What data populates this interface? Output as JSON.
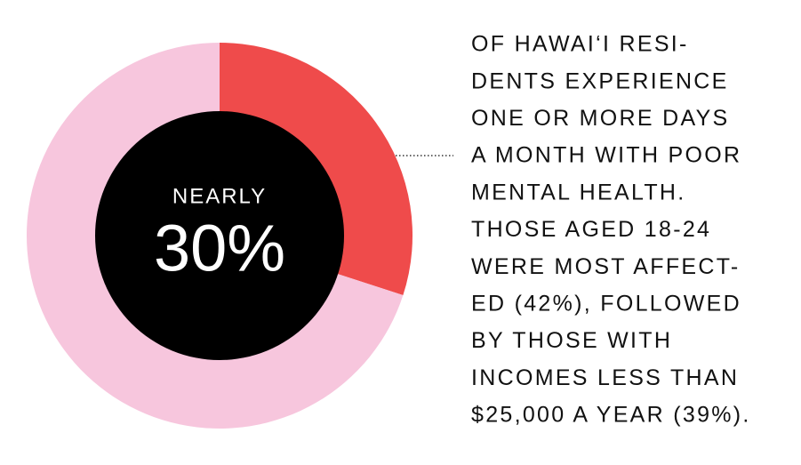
{
  "chart_data": {
    "type": "pie",
    "donut": true,
    "values": [
      30,
      70
    ],
    "value_labels": [
      "30%",
      null
    ],
    "colors": [
      "#ef4b4b",
      "#f7c6dd"
    ],
    "hole_color": "#000000",
    "center_label": "NEARLY",
    "annotation": [
      "OF HAWAI‘I RESI-",
      "DENTS EXPERIENCE",
      "ONE OR MORE DAYS",
      "A MONTH WITH POOR",
      "MENTAL HEALTH.",
      "THOSE AGED 18-24",
      "WERE MOST AFFECT-",
      "ED (42%), FOLLOWED",
      "BY THOSE WITH",
      "INCOMES LESS THAN",
      "$25,000 A YEAR (39%)."
    ]
  }
}
